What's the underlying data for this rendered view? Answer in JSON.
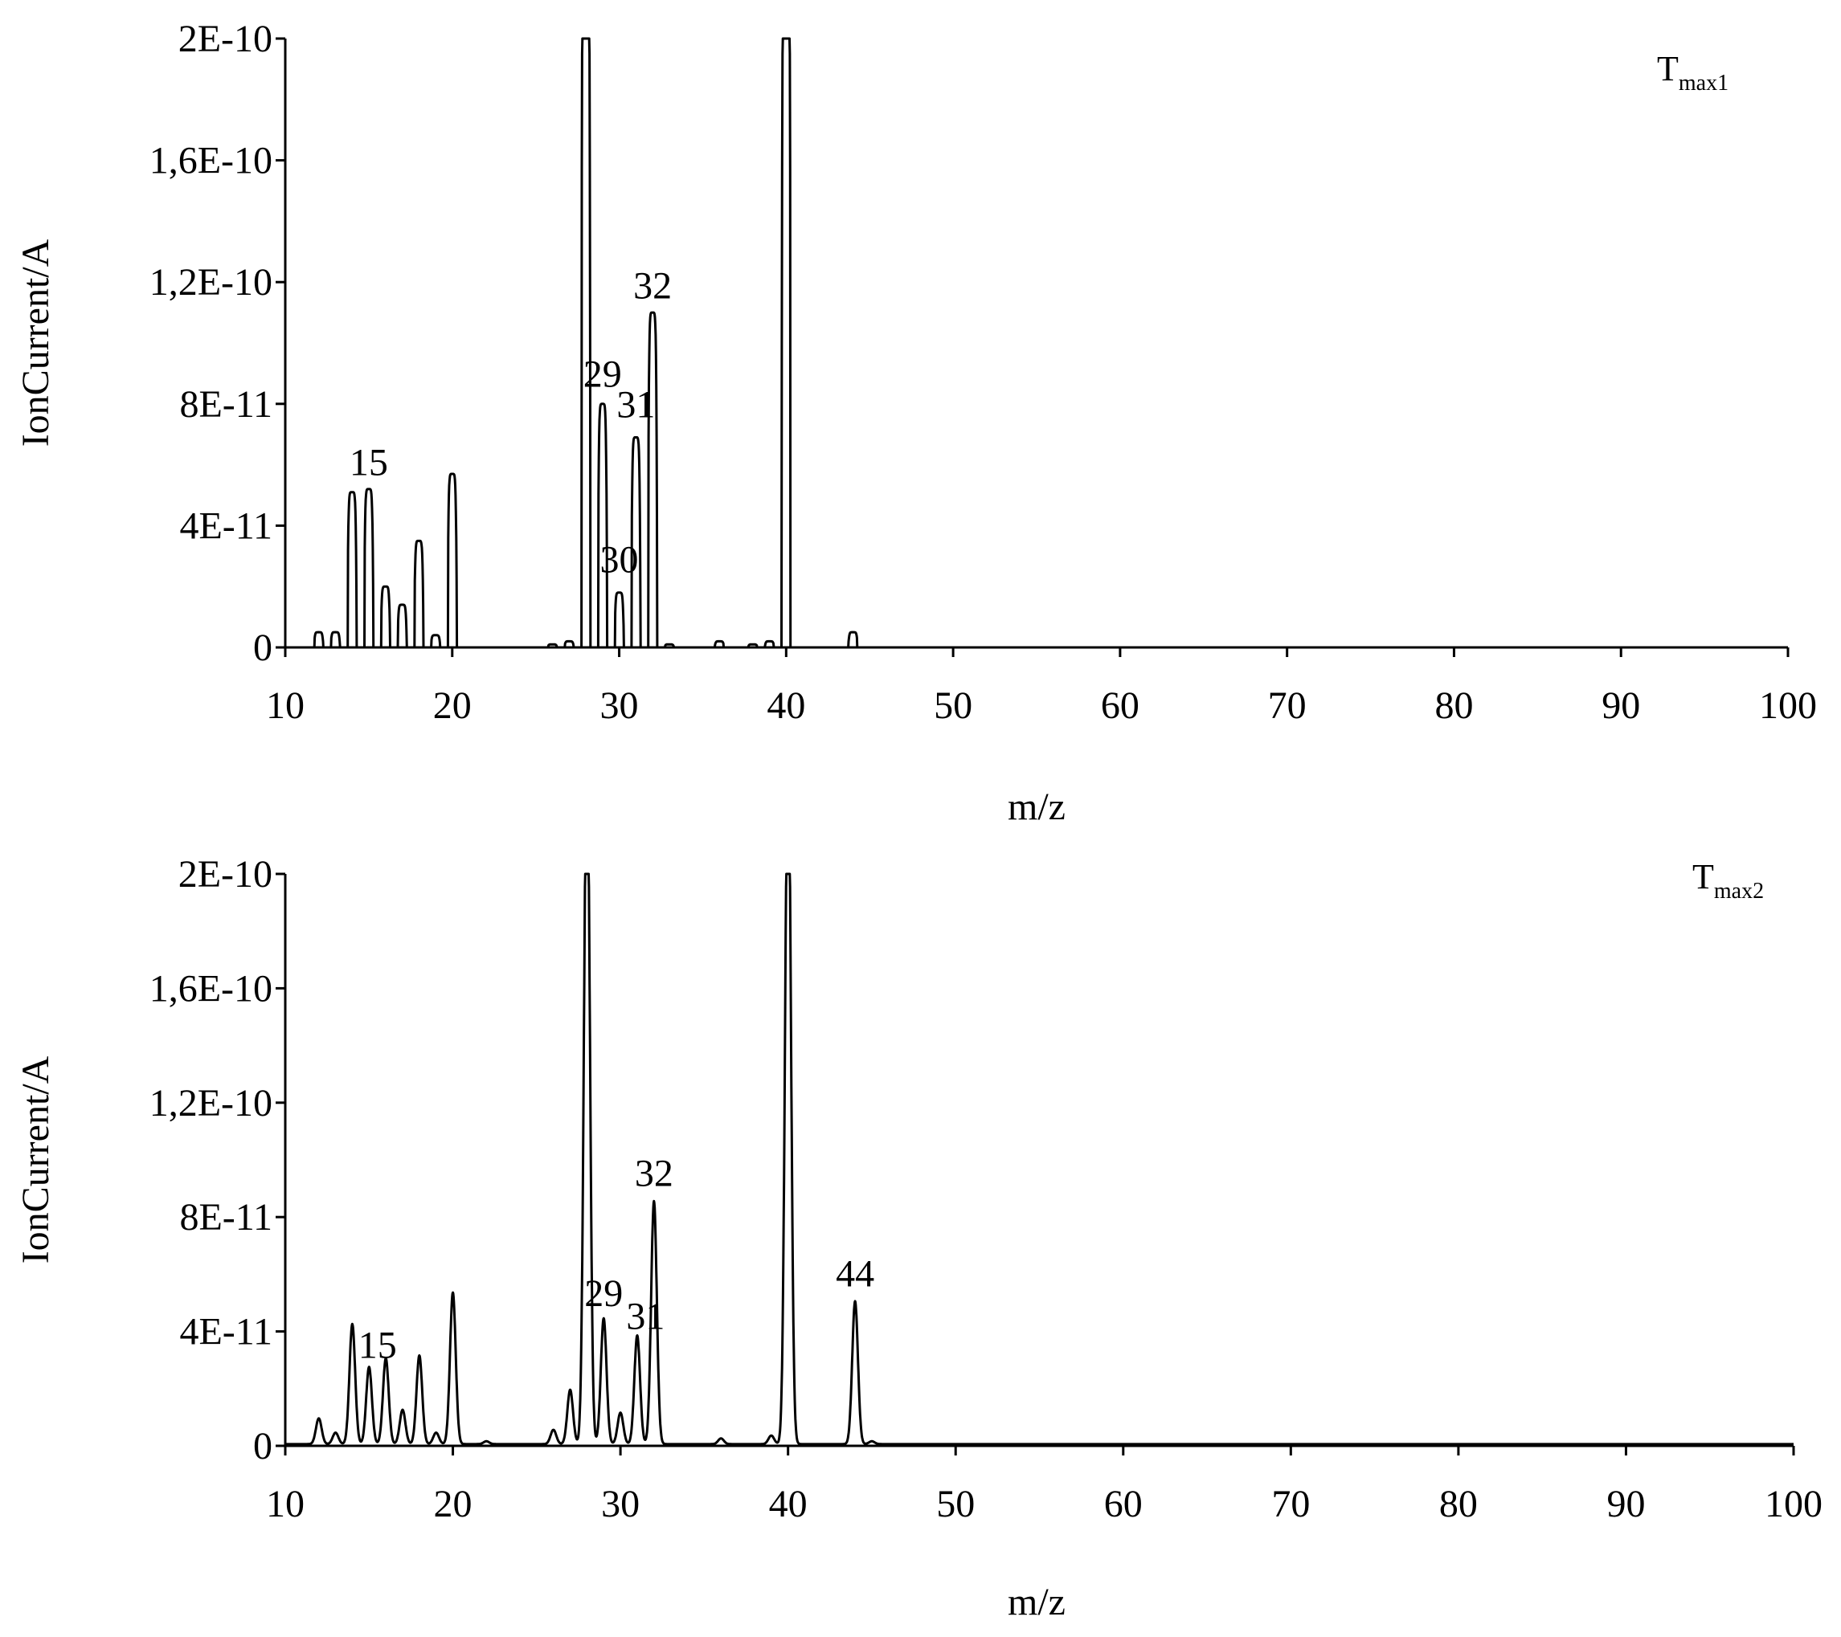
{
  "chart_data": [
    {
      "type": "line",
      "panel_tag": {
        "main": "T",
        "sub": "max1"
      },
      "xlabel": "m/z",
      "ylabel": "IonCurrent/A",
      "xlim": [
        10,
        100
      ],
      "ylim": [
        0,
        2e-10
      ],
      "x_ticks": [
        "10",
        "20",
        "30",
        "40",
        "50",
        "60",
        "70",
        "80",
        "90",
        "100"
      ],
      "y_ticks": [
        "0",
        "4E-11",
        "8E-11",
        "1,2E-10",
        "1,6E-10",
        "2E-10"
      ],
      "grid": false,
      "legend": "none",
      "peak_shape": "narrow",
      "series": [
        {
          "peaks": [
            [
              12,
              5e-12
            ],
            [
              13,
              5e-12
            ],
            [
              14,
              5.1e-11
            ],
            [
              15,
              5.2e-11
            ],
            [
              16,
              2e-11
            ],
            [
              17,
              1.4e-11
            ],
            [
              18,
              3.5e-11
            ],
            [
              19,
              4e-12
            ],
            [
              20,
              5.7e-11
            ],
            [
              26,
              1e-12
            ],
            [
              27,
              2e-12
            ],
            [
              28,
              2.5e-10
            ],
            [
              29,
              8e-11
            ],
            [
              30,
              1.8e-11
            ],
            [
              31,
              6.9e-11
            ],
            [
              32,
              1.1e-10
            ],
            [
              33,
              1e-12
            ],
            [
              36,
              2e-12
            ],
            [
              38,
              1e-12
            ],
            [
              39,
              2e-12
            ],
            [
              40,
              2.5e-10
            ],
            [
              44,
              5e-12
            ]
          ]
        }
      ],
      "annotations": [
        {
          "text": "15",
          "x": 15,
          "y": 5.4e-11
        },
        {
          "text": "29",
          "x": 29,
          "y": 8.3e-11
        },
        {
          "text": "30",
          "x": 30,
          "y": 2.2e-11
        },
        {
          "text": "31",
          "x": 31,
          "y": 7.3e-11
        },
        {
          "text": "32",
          "x": 32,
          "y": 1.12e-10
        }
      ]
    },
    {
      "type": "line",
      "panel_tag": {
        "main": "T",
        "sub": "max2"
      },
      "xlabel": "m/z",
      "ylabel": "IonCurrent/A",
      "xlim": [
        10,
        100
      ],
      "ylim": [
        0,
        2e-10
      ],
      "x_ticks": [
        "10",
        "20",
        "30",
        "40",
        "50",
        "60",
        "70",
        "80",
        "90",
        "100"
      ],
      "y_ticks": [
        "0",
        "4E-11",
        "8E-11",
        "1,2E-10",
        "1,6E-10",
        "2E-10"
      ],
      "grid": false,
      "legend": "none",
      "peak_shape": "gaussian",
      "series": [
        {
          "peaks": [
            [
              12,
              9e-12
            ],
            [
              13,
              4e-12
            ],
            [
              14,
              4.2e-11
            ],
            [
              15,
              2.7e-11
            ],
            [
              16,
              3e-11
            ],
            [
              17,
              1.2e-11
            ],
            [
              18,
              3.1e-11
            ],
            [
              19,
              4e-12
            ],
            [
              20,
              5.3e-11
            ],
            [
              22,
              1e-12
            ],
            [
              26,
              5e-12
            ],
            [
              27,
              1.9e-11
            ],
            [
              28,
              2.5e-10
            ],
            [
              29,
              4.4e-11
            ],
            [
              30,
              1.1e-11
            ],
            [
              31,
              3.8e-11
            ],
            [
              32,
              8.5e-11
            ],
            [
              36,
              2e-12
            ],
            [
              39,
              3e-12
            ],
            [
              40,
              2.5e-10
            ],
            [
              44,
              5e-11
            ],
            [
              45,
              1e-12
            ]
          ]
        }
      ],
      "annotations": [
        {
          "text": "15",
          "x": 15.5,
          "y": 2.8e-11
        },
        {
          "text": "29",
          "x": 29,
          "y": 4.6e-11
        },
        {
          "text": "31",
          "x": 31.5,
          "y": 3.8e-11
        },
        {
          "text": "32",
          "x": 32,
          "y": 8.8e-11
        },
        {
          "text": "44",
          "x": 44,
          "y": 5.3e-11
        }
      ]
    }
  ]
}
